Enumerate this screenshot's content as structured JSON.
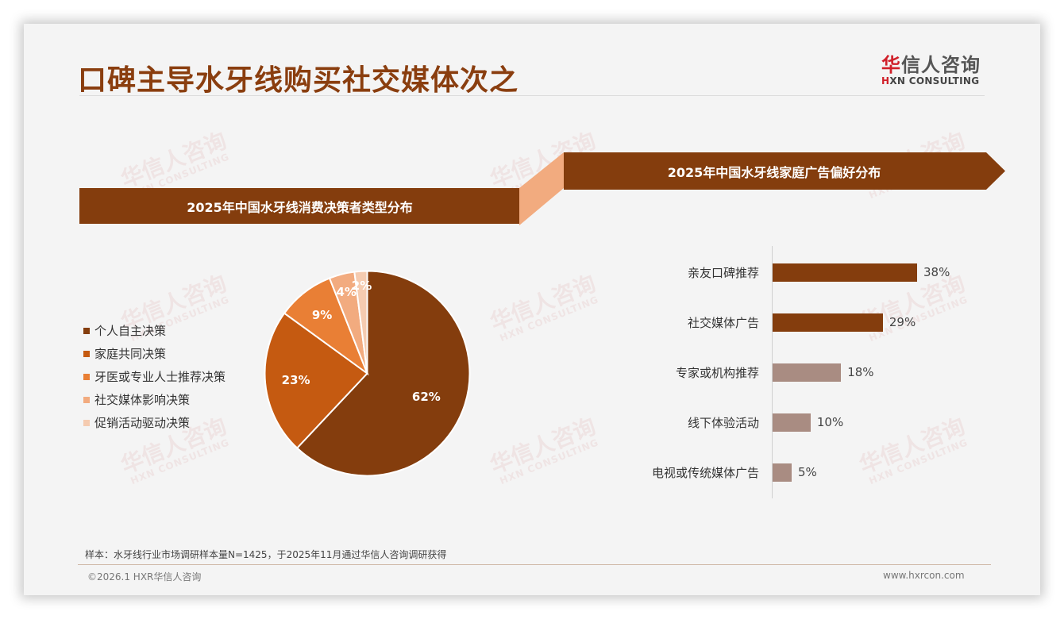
{
  "header": {
    "title": "口碑主导水牙线购买社交媒体次之",
    "logo": {
      "cn_first": "华",
      "cn_rest": "信人咨询",
      "en_first": "H",
      "en_rest": "XN CONSULTING"
    }
  },
  "watermark": {
    "cn": "华信人咨询",
    "en": "HXN CONSULTING"
  },
  "left_panel": {
    "banner": "2025年中国水牙线消费决策者类型分布"
  },
  "right_panel": {
    "banner": "2025年中国水牙线家庭广告偏好分布"
  },
  "colors": {
    "banner": "#843d0d",
    "connector": "#f2ab7f",
    "pie": [
      "#843d0d",
      "#c55a11",
      "#e97f35",
      "#f2ab7f",
      "#f5cbb0"
    ],
    "bar_dark": "#843d0d",
    "bar_light": "#a98c82"
  },
  "chart_data": [
    {
      "type": "pie",
      "title": "2025年中国水牙线消费决策者类型分布",
      "categories": [
        "个人自主决策",
        "家庭共同决策",
        "牙医或专业人士推荐决策",
        "社交媒体影响决策",
        "促销活动驱动决策"
      ],
      "values": [
        62,
        23,
        9,
        4,
        2
      ],
      "labels": [
        "62%",
        "23%",
        "9%",
        "4%",
        "2%"
      ],
      "unit": "%",
      "legend_position": "left"
    },
    {
      "type": "bar",
      "orientation": "horizontal",
      "title": "2025年中国水牙线家庭广告偏好分布",
      "categories": [
        "亲友口碑推荐",
        "社交媒体广告",
        "专家或机构推荐",
        "线下体验活动",
        "电视或传统媒体广告"
      ],
      "values": [
        38,
        29,
        18,
        10,
        5
      ],
      "labels": [
        "38%",
        "29%",
        "18%",
        "10%",
        "5%"
      ],
      "unit": "%",
      "grid": false,
      "xlim": [
        0,
        40
      ]
    }
  ],
  "footer": {
    "note": "样本：水牙线行业市场调研样本量N=1425，于2025年11月通过华信人咨询调研获得",
    "copyright": "©2026.1 HXR华信人咨询",
    "website": "www.hxrcon.com"
  }
}
